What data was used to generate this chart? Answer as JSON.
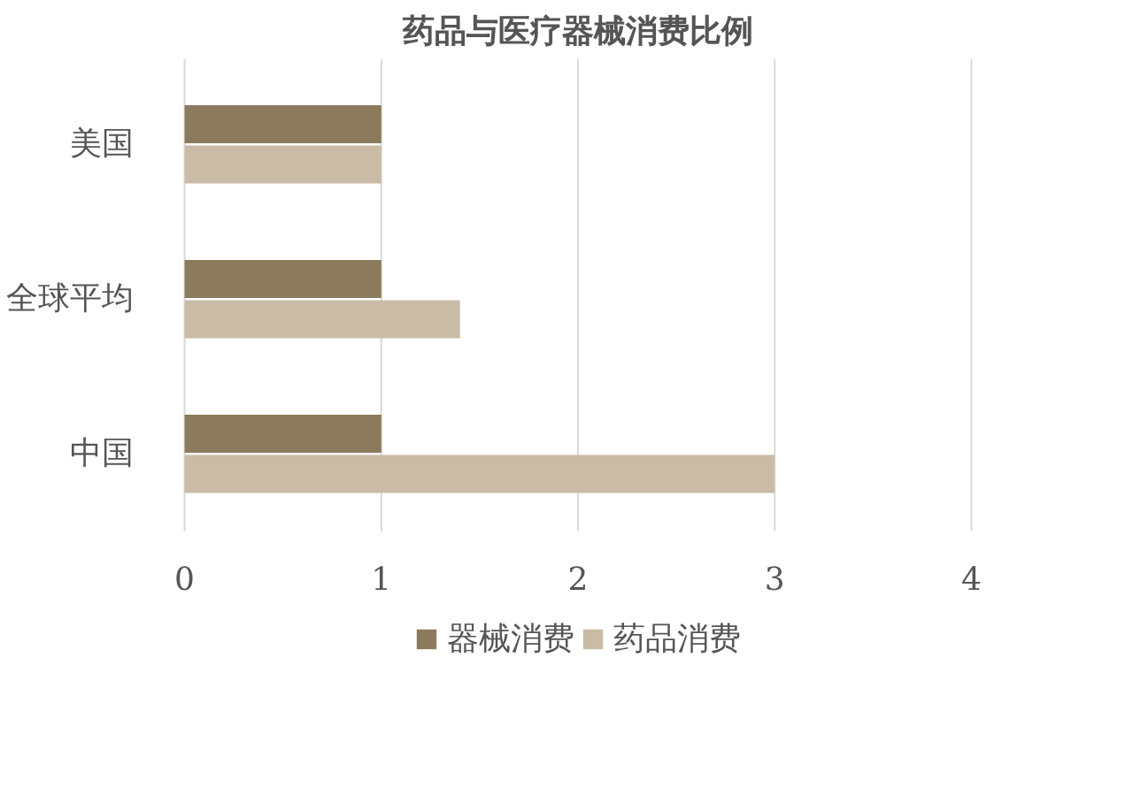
{
  "chart_data": {
    "type": "bar",
    "orientation": "horizontal",
    "title": "药品与医疗器械消费比例",
    "categories": [
      "美国",
      "全球平均",
      "中国"
    ],
    "series": [
      {
        "name": "器械消费",
        "color": "#8b7a5c",
        "values": [
          1,
          1,
          1
        ]
      },
      {
        "name": "药品消费",
        "color": "#c9bba5",
        "values": [
          1,
          1.4,
          3
        ]
      }
    ],
    "xlim": [
      0,
      4
    ],
    "xticks": [
      0,
      1,
      2,
      3,
      4
    ],
    "grid": "x",
    "legend": "bottom"
  }
}
